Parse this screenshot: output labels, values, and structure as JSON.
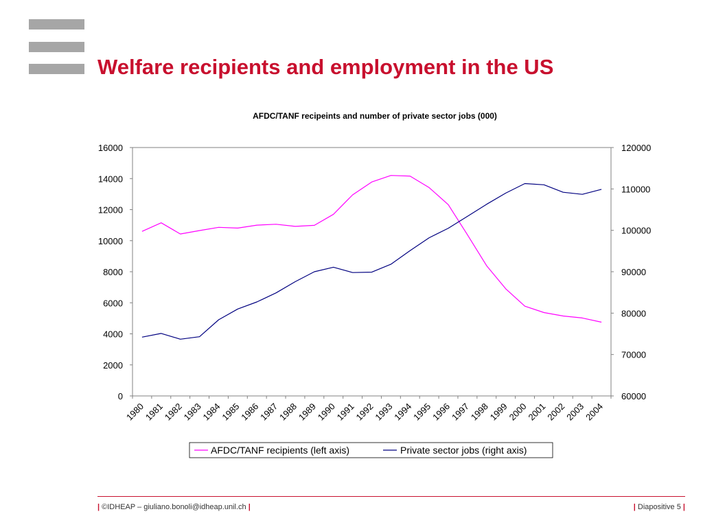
{
  "slide": {
    "title": "Welfare recipients and employment in the US",
    "footer_left": "©IDHEAP – giuliano.bonoli@idheap.unil.ch",
    "footer_right": "Diapositive 5",
    "footer_separator": "|"
  },
  "colors": {
    "title": "#c8102e",
    "afdc_series": "#ff00ff",
    "jobs_series": "#000080"
  },
  "chart_data": {
    "type": "line",
    "title": "AFDC/TANF recipeints and number of private sector jobs (000)",
    "categories": [
      "1980",
      "1981",
      "1982",
      "1983",
      "1984",
      "1985",
      "1986",
      "1987",
      "1988",
      "1989",
      "1990",
      "1991",
      "1992",
      "1993",
      "1994",
      "1995",
      "1996",
      "1997",
      "1998",
      "1999",
      "2000",
      "2001",
      "2002",
      "2003",
      "2004"
    ],
    "left_axis": {
      "ylim": [
        0,
        16000
      ],
      "ticks": [
        "0",
        "2000",
        "4000",
        "6000",
        "8000",
        "10000",
        "12000",
        "14000",
        "16000"
      ]
    },
    "right_axis": {
      "ylim": [
        60000,
        120000
      ],
      "ticks": [
        "60000",
        "70000",
        "80000",
        "90000",
        "100000",
        "110000",
        "120000"
      ]
    },
    "series": [
      {
        "name": "AFDC/TANF recipients (left axis)",
        "axis": "left",
        "values": [
          10600,
          11150,
          10430,
          10650,
          10860,
          10810,
          11000,
          11060,
          10920,
          10990,
          11700,
          12950,
          13780,
          14200,
          14160,
          13420,
          12320,
          10380,
          8390,
          6900,
          5780,
          5370,
          5150,
          5020,
          4750
        ]
      },
      {
        "name": "Private sector jobs (right axis)",
        "axis": "right",
        "values": [
          74200,
          75100,
          73700,
          74300,
          78400,
          81000,
          82700,
          84900,
          87600,
          90000,
          91100,
          89800,
          89900,
          91800,
          95100,
          98200,
          100500,
          103400,
          106300,
          109000,
          111300,
          111000,
          109200,
          108700,
          109900
        ]
      }
    ],
    "legend_position": "bottom",
    "grid": false
  }
}
